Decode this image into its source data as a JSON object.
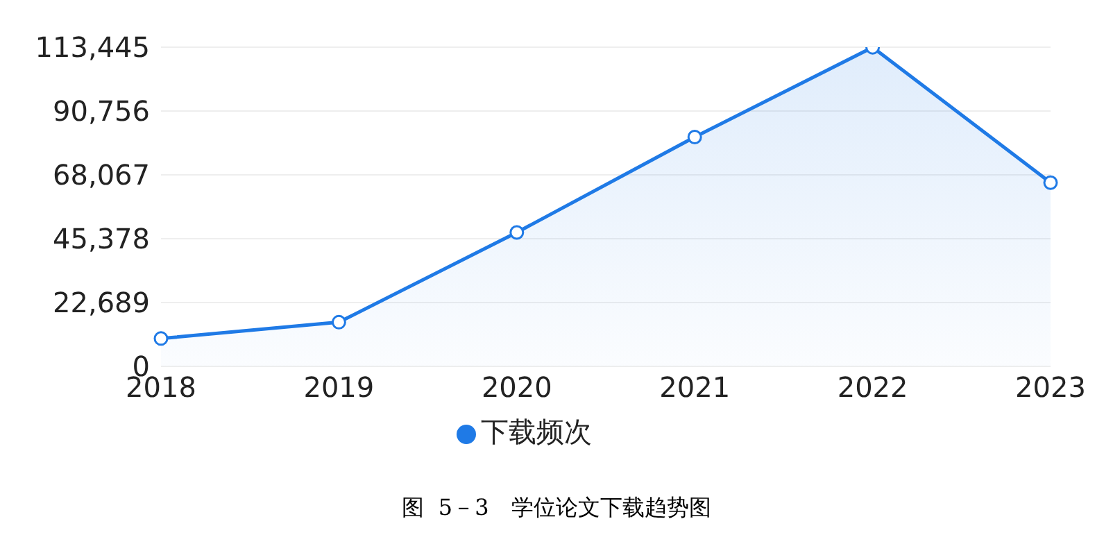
{
  "chart_data": {
    "type": "area",
    "categories": [
      "2018",
      "2019",
      "2020",
      "2021",
      "2022",
      "2023"
    ],
    "series": [
      {
        "name": "下载频次",
        "color": "#1f7ae6",
        "values": [
          9900,
          15700,
          47600,
          81500,
          113400,
          65300
        ]
      }
    ],
    "ylim": [
      0,
      113445
    ],
    "yticks": [
      {
        "value": 0,
        "label": "0"
      },
      {
        "value": 22689,
        "label": "22,689"
      },
      {
        "value": 45378,
        "label": "45,378"
      },
      {
        "value": 68067,
        "label": "68,067"
      },
      {
        "value": 90756,
        "label": "90,756"
      },
      {
        "value": 113445,
        "label": "113,445"
      }
    ],
    "grid": "y",
    "legend": "bottom",
    "marker": "circle",
    "line_style": "solid",
    "annotations": [
      "图  5－3　学位论文下载趋势图"
    ]
  }
}
